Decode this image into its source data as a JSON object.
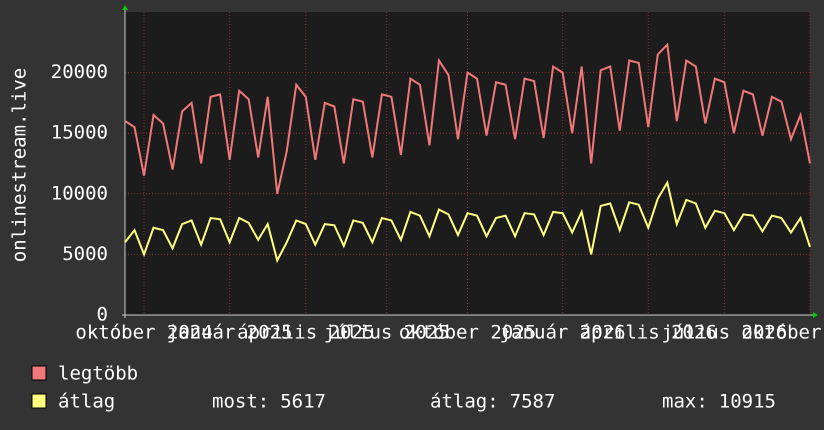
{
  "chart_data": {
    "type": "line",
    "y_label": "onlinestream.live",
    "xlim": [
      0,
      72
    ],
    "xticks": [
      {
        "value": 2,
        "label": "október 2024"
      },
      {
        "value": 11,
        "label": "január 2025"
      },
      {
        "value": 19,
        "label": "április 2025"
      },
      {
        "value": 27.5,
        "label": "július 2025"
      },
      {
        "value": 36,
        "label": "október 2025"
      },
      {
        "value": 46,
        "label": "január 2026"
      },
      {
        "value": 55,
        "label": "április 2026"
      },
      {
        "value": 63,
        "label": "július 2026"
      },
      {
        "value": 72,
        "label": "október 2026"
      }
    ],
    "ylim": [
      0,
      25000
    ],
    "yticks": [
      0,
      5000,
      10000,
      15000,
      20000
    ],
    "grid": true,
    "series": [
      {
        "name": "legtöbb",
        "color": "#f07878",
        "values": [
          16000,
          15500,
          11500,
          16500,
          15800,
          12000,
          16800,
          17500,
          12500,
          18000,
          18200,
          12800,
          18500,
          17800,
          13000,
          18000,
          10000,
          13500,
          19000,
          18000,
          12800,
          17500,
          17200,
          12500,
          17800,
          17600,
          13000,
          18200,
          18000,
          13200,
          19500,
          19000,
          14000,
          21000,
          19800,
          14500,
          20000,
          19500,
          14800,
          19200,
          19000,
          14500,
          19500,
          19300,
          14600,
          20500,
          20000,
          15000,
          20500,
          12500,
          20200,
          20500,
          15200,
          21000,
          20800,
          15500,
          21500,
          22300,
          16000,
          21000,
          20500,
          15800,
          19500,
          19200,
          15000,
          18500,
          18200,
          14800,
          18000,
          17600,
          14500,
          16500,
          12500
        ]
      },
      {
        "name": "átlag",
        "color": "#ffff80",
        "values": [
          6000,
          7000,
          5000,
          7200,
          7000,
          5500,
          7500,
          7800,
          5800,
          8000,
          7900,
          6000,
          8000,
          7600,
          6200,
          7500,
          4500,
          6000,
          7800,
          7500,
          5800,
          7500,
          7400,
          5700,
          7800,
          7600,
          6000,
          8000,
          7800,
          6200,
          8500,
          8200,
          6500,
          8700,
          8300,
          6600,
          8400,
          8200,
          6500,
          8000,
          8200,
          6500,
          8400,
          8300,
          6600,
          8500,
          8400,
          6800,
          8500,
          5000,
          9000,
          9200,
          7000,
          9300,
          9100,
          7200,
          9600,
          10915,
          7500,
          9500,
          9200,
          7200,
          8600,
          8400,
          7000,
          8300,
          8200,
          6900,
          8200,
          8000,
          6800,
          8000,
          5617
        ]
      }
    ],
    "stats": [
      {
        "label": "most:",
        "value": 5617
      },
      {
        "label": "átlag:",
        "value": 7587
      },
      {
        "label": "max:",
        "value": 10915
      }
    ]
  }
}
